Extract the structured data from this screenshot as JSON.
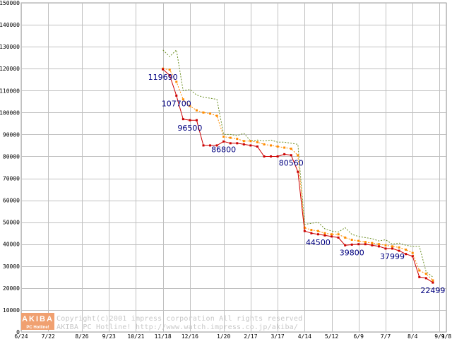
{
  "chart_data": {
    "type": "line",
    "title": "",
    "xlabel": "",
    "ylabel": "",
    "ylim": [
      0,
      150000
    ],
    "yticks": [
      0,
      10000,
      20000,
      30000,
      40000,
      50000,
      60000,
      70000,
      80000,
      90000,
      100000,
      110000,
      120000,
      130000,
      140000,
      150000
    ],
    "grid": true,
    "legend": "none",
    "x_ticks": [
      {
        "label": "6/24",
        "day": 0
      },
      {
        "label": "7/22",
        "day": 28
      },
      {
        "label": "8/26",
        "day": 63
      },
      {
        "label": "9/23",
        "day": 91
      },
      {
        "label": "10/21",
        "day": 119
      },
      {
        "label": "11/18",
        "day": 147
      },
      {
        "label": "12/16",
        "day": 175
      },
      {
        "label": "1/20",
        "day": 210
      },
      {
        "label": "2/17",
        "day": 238
      },
      {
        "label": "3/17",
        "day": 266
      },
      {
        "label": "4/14",
        "day": 294
      },
      {
        "label": "5/12",
        "day": 322
      },
      {
        "label": "6/9",
        "day": 350
      },
      {
        "label": "7/7",
        "day": 378
      },
      {
        "label": "8/4",
        "day": 406
      },
      {
        "label": "9/1",
        "day": 434
      },
      {
        "label": "9/8",
        "day": 441
      }
    ],
    "x_range": [
      0,
      441
    ],
    "series": [
      {
        "color": "#cc0000",
        "style": "solid",
        "markers": true,
        "points": [
          [
            147,
            119690
          ],
          [
            154,
            117000
          ],
          [
            161,
            107700
          ],
          [
            168,
            97000
          ],
          [
            175,
            96500
          ],
          [
            182,
            96500
          ],
          [
            189,
            85000
          ],
          [
            196,
            85000
          ],
          [
            203,
            85000
          ],
          [
            210,
            86800
          ],
          [
            217,
            86000
          ],
          [
            224,
            86000
          ],
          [
            231,
            85500
          ],
          [
            238,
            85000
          ],
          [
            245,
            84500
          ],
          [
            252,
            80000
          ],
          [
            259,
            80000
          ],
          [
            266,
            80000
          ],
          [
            273,
            81000
          ],
          [
            280,
            80560
          ],
          [
            287,
            73000
          ],
          [
            294,
            46000
          ],
          [
            301,
            45000
          ],
          [
            308,
            44500
          ],
          [
            315,
            44000
          ],
          [
            322,
            43500
          ],
          [
            329,
            43000
          ],
          [
            336,
            39500
          ],
          [
            343,
            39800
          ],
          [
            350,
            40000
          ],
          [
            357,
            40000
          ],
          [
            364,
            39500
          ],
          [
            371,
            39000
          ],
          [
            378,
            38000
          ],
          [
            385,
            37999
          ],
          [
            392,
            37000
          ],
          [
            399,
            35500
          ],
          [
            406,
            34500
          ],
          [
            413,
            25000
          ],
          [
            420,
            24500
          ],
          [
            427,
            22499
          ]
        ]
      },
      {
        "color": "#ff8c00",
        "style": "dashed",
        "markers": true,
        "points": [
          [
            147,
            120000
          ],
          [
            154,
            119500
          ],
          [
            161,
            114000
          ],
          [
            168,
            106000
          ],
          [
            175,
            103000
          ],
          [
            182,
            101000
          ],
          [
            189,
            100000
          ],
          [
            196,
            99500
          ],
          [
            203,
            98500
          ],
          [
            210,
            89000
          ],
          [
            217,
            88500
          ],
          [
            224,
            88000
          ],
          [
            231,
            87000
          ],
          [
            238,
            87000
          ],
          [
            245,
            86500
          ],
          [
            252,
            85500
          ],
          [
            259,
            85000
          ],
          [
            266,
            84500
          ],
          [
            273,
            84000
          ],
          [
            280,
            83500
          ],
          [
            287,
            80500
          ],
          [
            294,
            47500
          ],
          [
            301,
            46500
          ],
          [
            308,
            46000
          ],
          [
            315,
            45000
          ],
          [
            322,
            44500
          ],
          [
            329,
            44500
          ],
          [
            336,
            43000
          ],
          [
            343,
            42000
          ],
          [
            350,
            41500
          ],
          [
            357,
            41000
          ],
          [
            364,
            40500
          ],
          [
            371,
            40000
          ],
          [
            378,
            39500
          ],
          [
            385,
            39000
          ],
          [
            392,
            38500
          ],
          [
            399,
            37500
          ],
          [
            406,
            36000
          ],
          [
            413,
            28000
          ],
          [
            420,
            26500
          ],
          [
            427,
            23500
          ]
        ]
      },
      {
        "color": "#6b8e23",
        "style": "dashed",
        "markers": false,
        "points": [
          [
            147,
            128500
          ],
          [
            154,
            125500
          ],
          [
            161,
            128500
          ],
          [
            168,
            110000
          ],
          [
            175,
            110500
          ],
          [
            182,
            108000
          ],
          [
            189,
            107000
          ],
          [
            196,
            106500
          ],
          [
            203,
            106000
          ],
          [
            210,
            90000
          ],
          [
            217,
            90000
          ],
          [
            224,
            89500
          ],
          [
            231,
            90500
          ],
          [
            238,
            87000
          ],
          [
            245,
            87500
          ],
          [
            252,
            87000
          ],
          [
            259,
            87500
          ],
          [
            266,
            86500
          ],
          [
            273,
            86500
          ],
          [
            280,
            86000
          ],
          [
            287,
            85500
          ],
          [
            294,
            49000
          ],
          [
            301,
            49500
          ],
          [
            308,
            50000
          ],
          [
            315,
            47000
          ],
          [
            322,
            46000
          ],
          [
            329,
            45500
          ],
          [
            336,
            47500
          ],
          [
            343,
            44500
          ],
          [
            350,
            43500
          ],
          [
            357,
            43000
          ],
          [
            364,
            42500
          ],
          [
            371,
            41500
          ],
          [
            378,
            42000
          ],
          [
            385,
            40000
          ],
          [
            392,
            40500
          ],
          [
            399,
            39500
          ],
          [
            406,
            39000
          ],
          [
            413,
            39000
          ],
          [
            420,
            27500
          ],
          [
            427,
            25000
          ]
        ]
      }
    ],
    "annotations": [
      {
        "text": "119690",
        "day": 147,
        "value": 119690
      },
      {
        "text": "107700",
        "day": 161,
        "value": 107700
      },
      {
        "text": "96500",
        "day": 175,
        "value": 96500
      },
      {
        "text": "86800",
        "day": 210,
        "value": 86800
      },
      {
        "text": "80560",
        "day": 280,
        "value": 80560
      },
      {
        "text": "44500",
        "day": 308,
        "value": 44500
      },
      {
        "text": "39800",
        "day": 343,
        "value": 39800
      },
      {
        "text": "37999",
        "day": 385,
        "value": 37999
      },
      {
        "text": "22499",
        "day": 427,
        "value": 22499
      }
    ]
  },
  "watermark": {
    "logo_top": "AKIBA",
    "logo_bottom": "PC Hotline!",
    "line1": "Copyright(c)2001 impress corporation All rights reserved.",
    "line2": "AKIBA PC Hotline!  http://www.watch.impress.co.jp/akiba/",
    "colors": {
      "logo_bg": "#f0a070",
      "text": "#c8c8c8"
    }
  }
}
